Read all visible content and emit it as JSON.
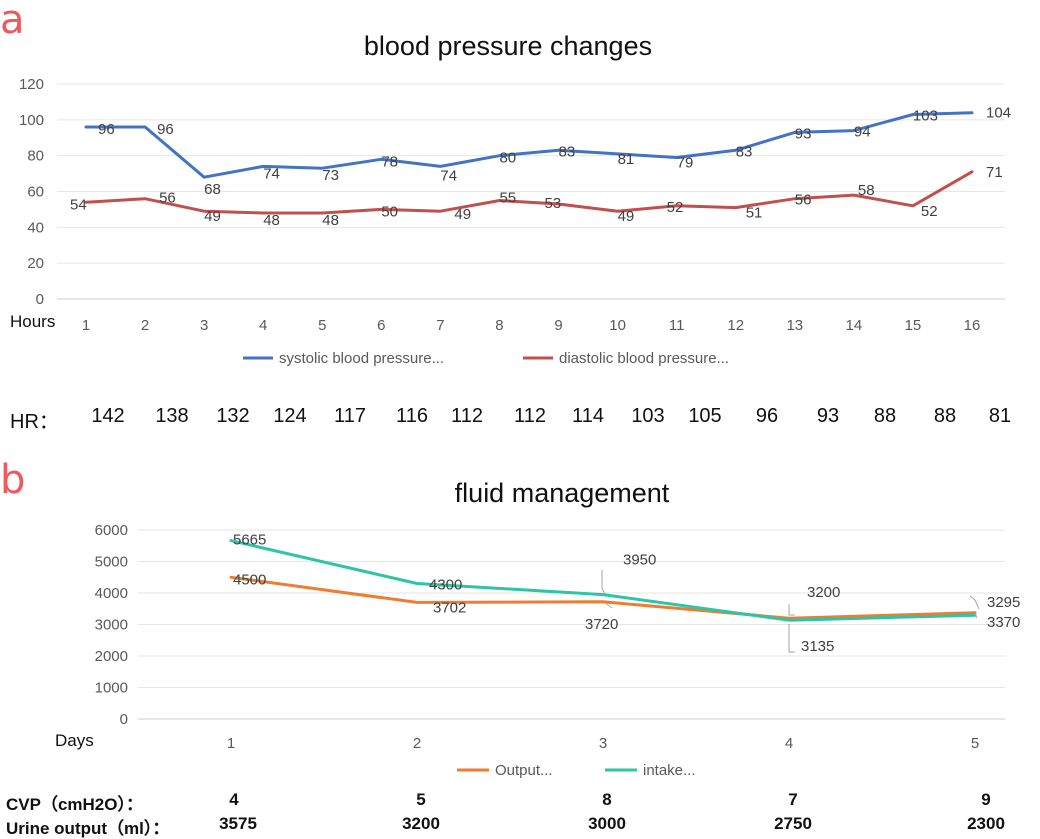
{
  "panel_a": {
    "letter": "a",
    "hr_label": "HR：",
    "hr_values": [
      "142",
      "138",
      "132",
      "124",
      "117",
      "116",
      "112",
      "112",
      "114",
      "103",
      "105",
      "96",
      "93",
      "88",
      "88",
      "81"
    ]
  },
  "panel_b": {
    "letter": "b",
    "cvp_label": "CVP（cmH2O）：",
    "cvp_values": [
      "4",
      "5",
      "8",
      "7",
      "9"
    ],
    "urine_label": "Urine output（ml）：",
    "urine_values": [
      "3575",
      "3200",
      "3000",
      "2750",
      "2300"
    ]
  },
  "colors": {
    "systolic": "#4472c4",
    "diastolic": "#c0504d",
    "output": "#ed7d31",
    "intake": "#2ec4a6",
    "letter": "#f0585a"
  },
  "chart_data": [
    {
      "type": "line",
      "title": "blood pressure changes",
      "xlabel": "Hours",
      "ylabel": "",
      "categories": [
        "1",
        "2",
        "3",
        "4",
        "5",
        "6",
        "7",
        "8",
        "9",
        "10",
        "11",
        "12",
        "13",
        "14",
        "15",
        "16"
      ],
      "ylim": [
        0,
        120
      ],
      "yticks": [
        "0",
        "20",
        "40",
        "60",
        "80",
        "100",
        "120"
      ],
      "grid": true,
      "legend": "bottom",
      "series": [
        {
          "name": "systolic blood pressure...",
          "color": "#4472c4",
          "values": [
            96,
            96,
            68,
            74,
            73,
            78,
            74,
            80,
            83,
            81,
            79,
            83,
            93,
            94,
            103,
            104
          ],
          "labels": [
            "96",
            "96",
            "68",
            "74",
            "73",
            "78",
            "74",
            "80",
            "83",
            "81",
            "79",
            "83",
            "93",
            "94",
            "103",
            "104"
          ]
        },
        {
          "name": "diastolic blood pressure...",
          "color": "#c0504d",
          "values": [
            54,
            56,
            49,
            48,
            48,
            50,
            49,
            55,
            53,
            49,
            52,
            51,
            56,
            58,
            52,
            71
          ],
          "labels": [
            "54",
            "56",
            "49",
            "48",
            "48",
            "50",
            "49",
            "55",
            "53",
            "49",
            "52",
            "51",
            "56",
            "58",
            "52",
            "71"
          ]
        }
      ]
    },
    {
      "type": "line",
      "title": "fluid management",
      "xlabel": "Days",
      "ylabel": "",
      "categories": [
        "1",
        "2",
        "3",
        "4",
        "5"
      ],
      "ylim": [
        0,
        6000
      ],
      "yticks": [
        "0",
        "1000",
        "2000",
        "3000",
        "4000",
        "5000",
        "6000"
      ],
      "grid": true,
      "legend": "bottom",
      "series": [
        {
          "name": "Output...",
          "color": "#ed7d31",
          "values": [
            4500,
            3702,
            3720,
            3200,
            3370
          ],
          "labels": [
            "4500",
            "3702",
            "3720",
            "3200",
            "3370"
          ]
        },
        {
          "name": "intake...",
          "color": "#2ec4a6",
          "values": [
            5665,
            4300,
            3950,
            3135,
            3295
          ],
          "labels": [
            "5665",
            "4300",
            "3950",
            "3135",
            "3295"
          ]
        }
      ]
    }
  ]
}
